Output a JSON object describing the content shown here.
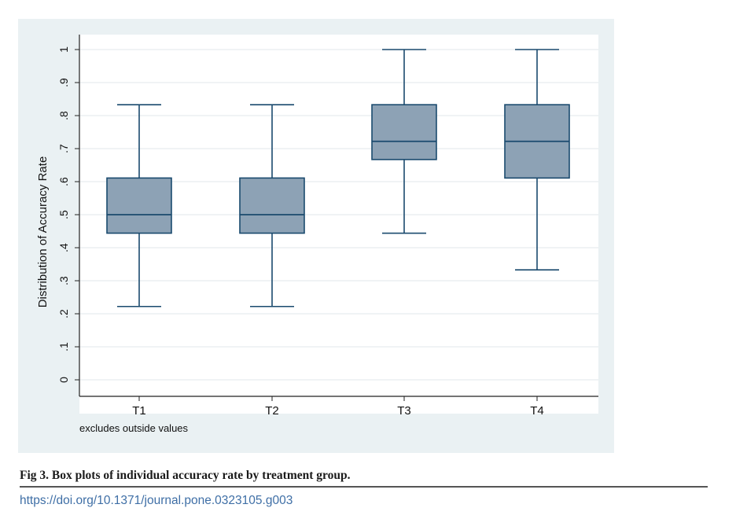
{
  "chart_data": {
    "type": "box",
    "ylabel": "Distribution of Accuracy Rate",
    "ylim": [
      0,
      1
    ],
    "y_ticks": [
      "0",
      ".1",
      ".2",
      ".3",
      ".4",
      ".5",
      ".6",
      ".7",
      ".8",
      ".9",
      "1"
    ],
    "y_tick_values": [
      0,
      0.1,
      0.2,
      0.3,
      0.4,
      0.5,
      0.6,
      0.7,
      0.8,
      0.9,
      1.0
    ],
    "categories": [
      "T1",
      "T2",
      "T3",
      "T4"
    ],
    "boxes": [
      {
        "category": "T1",
        "whisker_low": 0.222,
        "q1": 0.444,
        "median": 0.5,
        "q3": 0.611,
        "whisker_high": 0.833
      },
      {
        "category": "T2",
        "whisker_low": 0.222,
        "q1": 0.444,
        "median": 0.5,
        "q3": 0.611,
        "whisker_high": 0.833
      },
      {
        "category": "T3",
        "whisker_low": 0.444,
        "q1": 0.667,
        "median": 0.722,
        "q3": 0.833,
        "whisker_high": 1.0
      },
      {
        "category": "T4",
        "whisker_low": 0.333,
        "q1": 0.611,
        "median": 0.722,
        "q3": 0.833,
        "whisker_high": 1.0
      }
    ],
    "note": "excludes outside values",
    "grid": true,
    "colors": {
      "box_fill": "#8da2b5",
      "box_stroke": "#1a4a6e",
      "whisker": "#1a4a6e",
      "grid": "#e6ecef",
      "plot_bg": "#ffffff",
      "panel_bg": "#eaf1f3"
    }
  },
  "caption": "Fig 3. Box plots of individual accuracy rate by treatment group.",
  "doi": "https://doi.org/10.1371/journal.pone.0323105.g003"
}
